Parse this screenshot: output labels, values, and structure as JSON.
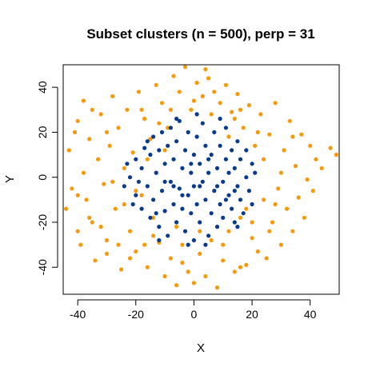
{
  "chart_data": {
    "type": "scatter",
    "title": "Subset clusters (n = 500), perp = 31",
    "xlabel": "X",
    "ylabel": "Y",
    "xlim": [
      -45,
      50
    ],
    "ylim": [
      -52,
      50
    ],
    "x_ticks": [
      -40,
      -20,
      0,
      20,
      40
    ],
    "y_ticks": [
      -40,
      -20,
      0,
      20,
      40
    ],
    "grid": false,
    "legend": "none",
    "series": [
      {
        "color": "#f59a0c",
        "spread": "broad ring around the center",
        "points": [
          [
            -44,
            -14
          ],
          [
            -43,
            12
          ],
          [
            -42,
            -5
          ],
          [
            -41,
            20
          ],
          [
            -40,
            -24
          ],
          [
            -40,
            25
          ],
          [
            -39,
            -30
          ],
          [
            -38,
            34
          ],
          [
            -38,
            2
          ],
          [
            -37,
            -10
          ],
          [
            -36,
            17
          ],
          [
            -35,
            -20
          ],
          [
            -34,
            -37
          ],
          [
            -33,
            8
          ],
          [
            -32,
            28
          ],
          [
            -31,
            -3
          ],
          [
            -30,
            -28
          ],
          [
            -29,
            14
          ],
          [
            -28,
            36
          ],
          [
            -27,
            -14
          ],
          [
            -26,
            22
          ],
          [
            -25,
            -41
          ],
          [
            -24,
            4
          ],
          [
            -23,
            30
          ],
          [
            -22,
            -24
          ],
          [
            -21,
            11
          ],
          [
            -20,
            -33
          ],
          [
            -19,
            38
          ],
          [
            -18,
            -8
          ],
          [
            -17,
            26
          ],
          [
            -16,
            -40
          ],
          [
            -15,
            17
          ],
          [
            -14,
            -18
          ],
          [
            -13,
            41
          ],
          [
            -12,
            -29
          ],
          [
            -11,
            33
          ],
          [
            -10,
            -44
          ],
          [
            -9,
            22
          ],
          [
            -8,
            -36
          ],
          [
            -7,
            45
          ],
          [
            -6,
            -48
          ],
          [
            -5,
            38
          ],
          [
            -4,
            -30
          ],
          [
            -3,
            49
          ],
          [
            -2,
            -42
          ],
          [
            -1,
            30
          ],
          [
            0,
            -47
          ],
          [
            1,
            42
          ],
          [
            2,
            -34
          ],
          [
            3,
            36
          ],
          [
            4,
            -44
          ],
          [
            5,
            44
          ],
          [
            6,
            -28
          ],
          [
            7,
            38
          ],
          [
            8,
            -49
          ],
          [
            9,
            33
          ],
          [
            10,
            -37
          ],
          [
            11,
            41
          ],
          [
            12,
            -24
          ],
          [
            13,
            29
          ],
          [
            14,
            -42
          ],
          [
            15,
            37
          ],
          [
            16,
            -18
          ],
          [
            17,
            22
          ],
          [
            18,
            -39
          ],
          [
            19,
            32
          ],
          [
            20,
            -27
          ],
          [
            21,
            14
          ],
          [
            22,
            -33
          ],
          [
            23,
            28
          ],
          [
            24,
            -10
          ],
          [
            25,
            -36
          ],
          [
            26,
            19
          ],
          [
            27,
            -20
          ],
          [
            28,
            33
          ],
          [
            29,
            -5
          ],
          [
            30,
            -30
          ],
          [
            31,
            12
          ],
          [
            32,
            -14
          ],
          [
            33,
            25
          ],
          [
            34,
            -24
          ],
          [
            35,
            5
          ],
          [
            36,
            -9
          ],
          [
            37,
            19
          ],
          [
            38,
            -18
          ],
          [
            39,
            -1
          ],
          [
            40,
            14
          ],
          [
            41,
            -6
          ],
          [
            42,
            8
          ],
          [
            44,
            4
          ],
          [
            47,
            13
          ],
          [
            49,
            10
          ],
          [
            -36,
            -18
          ],
          [
            -30,
            20
          ],
          [
            -24,
            -12
          ],
          [
            -22,
            -36
          ],
          [
            -18,
            30
          ],
          [
            -14,
            -26
          ],
          [
            -12,
            24
          ],
          [
            -8,
            30
          ],
          [
            -6,
            -22
          ],
          [
            2,
            -24
          ],
          [
            6,
            28
          ],
          [
            10,
            -30
          ],
          [
            14,
            26
          ],
          [
            18,
            -14
          ],
          [
            22,
            20
          ],
          [
            26,
            -24
          ],
          [
            30,
            2
          ],
          [
            34,
            18
          ],
          [
            -28,
            -2
          ],
          [
            -26,
            -30
          ],
          [
            -20,
            -6
          ],
          [
            -16,
            8
          ],
          [
            -32,
            -22
          ],
          [
            -30,
            -34
          ],
          [
            -10,
            12
          ],
          [
            28,
            -12
          ],
          [
            24,
            8
          ],
          [
            16,
            30
          ],
          [
            -4,
            -38
          ],
          [
            0,
            34
          ],
          [
            12,
            18
          ],
          [
            -40,
            -8
          ],
          [
            -35,
            30
          ],
          [
            20,
            -20
          ],
          [
            -17,
            -30
          ],
          [
            4,
            48
          ],
          [
            16,
            -40
          ]
        ]
      },
      {
        "color": "#0a3a8c",
        "spread": "dense cluster at the center",
        "points": [
          [
            -22,
            0
          ],
          [
            -20,
            -8
          ],
          [
            -20,
            8
          ],
          [
            -18,
            -14
          ],
          [
            -18,
            4
          ],
          [
            -17,
            13
          ],
          [
            -16,
            -4
          ],
          [
            -15,
            -18
          ],
          [
            -15,
            10
          ],
          [
            -14,
            -10
          ],
          [
            -14,
            18
          ],
          [
            -13,
            2
          ],
          [
            -12,
            -22
          ],
          [
            -12,
            12
          ],
          [
            -11,
            -6
          ],
          [
            -11,
            20
          ],
          [
            -10,
            -15
          ],
          [
            -10,
            6
          ],
          [
            -9,
            -26
          ],
          [
            -9,
            14
          ],
          [
            -8,
            -2
          ],
          [
            -8,
            22
          ],
          [
            -7,
            -12
          ],
          [
            -7,
            8
          ],
          [
            -6,
            -20
          ],
          [
            -6,
            16
          ],
          [
            -5,
            -5
          ],
          [
            -5,
            25
          ],
          [
            -4,
            -14
          ],
          [
            -4,
            4
          ],
          [
            -3,
            -24
          ],
          [
            -3,
            12
          ],
          [
            -2,
            -8
          ],
          [
            -2,
            20
          ],
          [
            -1,
            -16
          ],
          [
            -1,
            2
          ],
          [
            0,
            -28
          ],
          [
            0,
            10
          ],
          [
            0,
            -4
          ],
          [
            1,
            -12
          ],
          [
            1,
            18
          ],
          [
            2,
            -20
          ],
          [
            2,
            6
          ],
          [
            3,
            -2
          ],
          [
            3,
            24
          ],
          [
            4,
            -10
          ],
          [
            4,
            14
          ],
          [
            5,
            -26
          ],
          [
            5,
            2
          ],
          [
            6,
            -16
          ],
          [
            6,
            10
          ],
          [
            7,
            -6
          ],
          [
            7,
            20
          ],
          [
            8,
            -22
          ],
          [
            8,
            4
          ],
          [
            9,
            -12
          ],
          [
            9,
            14
          ],
          [
            10,
            -2
          ],
          [
            10,
            -18
          ],
          [
            11,
            8
          ],
          [
            11,
            22
          ],
          [
            12,
            -8
          ],
          [
            12,
            2
          ],
          [
            13,
            -14
          ],
          [
            13,
            12
          ],
          [
            14,
            -20
          ],
          [
            14,
            4
          ],
          [
            15,
            -4
          ],
          [
            15,
            16
          ],
          [
            16,
            -10
          ],
          [
            16,
            8
          ],
          [
            17,
            -16
          ],
          [
            18,
            0
          ],
          [
            18,
            12
          ],
          [
            19,
            -6
          ],
          [
            20,
            -12
          ],
          [
            20,
            6
          ],
          [
            21,
            2
          ],
          [
            -19,
            -2
          ],
          [
            -16,
            16
          ],
          [
            -13,
            -16
          ],
          [
            -10,
            -2
          ],
          [
            -7,
            -4
          ],
          [
            -4,
            -8
          ],
          [
            -1,
            6
          ],
          [
            2,
            -4
          ],
          [
            5,
            8
          ],
          [
            8,
            -4
          ],
          [
            11,
            -10
          ],
          [
            14,
            -6
          ],
          [
            -24,
            -4
          ],
          [
            -23,
            6
          ],
          [
            -21,
            -12
          ],
          [
            -2,
            -30
          ],
          [
            4,
            -30
          ],
          [
            1,
            28
          ],
          [
            -6,
            26
          ],
          [
            9,
            26
          ],
          [
            -12,
            -28
          ],
          [
            15,
            -22
          ]
        ]
      }
    ]
  }
}
